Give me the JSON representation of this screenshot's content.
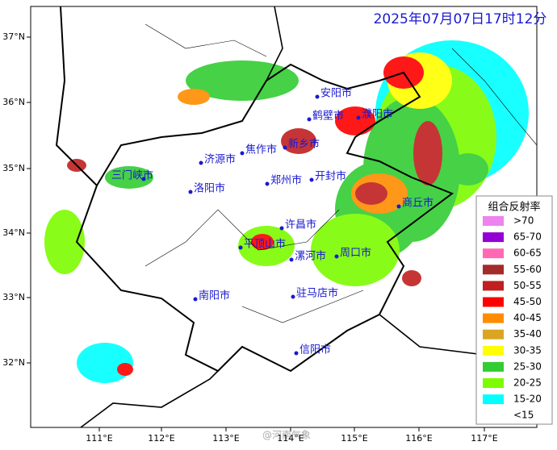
{
  "title": "2025年07月07日17时12分",
  "lat_labels": [
    "37°N",
    "36°N",
    "35°N",
    "34°N",
    "33°N",
    "32°N"
  ],
  "lon_labels": [
    "111°E",
    "112°E",
    "113°E",
    "114°E",
    "115°E",
    "116°E",
    "117°E"
  ],
  "cities": [
    "安阳市",
    "鹤壁市",
    "濮阳市",
    "新乡市",
    "焦作市",
    "济源市",
    "三门峡市",
    "洛阳市",
    "郑州市",
    "开封市",
    "商丘市",
    "许昌市",
    "平顶山市",
    "漯河市",
    "周口市",
    "南阳市",
    "驻马店市",
    "信阳市"
  ],
  "legend": {
    "title": "组合反射率",
    "items": [
      {
        "label": ">70",
        "color": "#ee82ee"
      },
      {
        "label": "65-70",
        "color": "#9400d3"
      },
      {
        "label": "60-65",
        "color": "#ff69b4"
      },
      {
        "label": "55-60",
        "color": "#a52a2a"
      },
      {
        "label": "50-55",
        "color": "#c02020"
      },
      {
        "label": "45-50",
        "color": "#ff0000"
      },
      {
        "label": "40-45",
        "color": "#ff8c00"
      },
      {
        "label": "35-40",
        "color": "#daa520"
      },
      {
        "label": "30-35",
        "color": "#ffff00"
      },
      {
        "label": "25-30",
        "color": "#32cd32"
      },
      {
        "label": "20-25",
        "color": "#7cfc00"
      },
      {
        "label": "15-20",
        "color": "#00ffff"
      },
      {
        "label": "<15",
        "color": "#ffffff"
      }
    ]
  },
  "watermark": "@河南气象"
}
